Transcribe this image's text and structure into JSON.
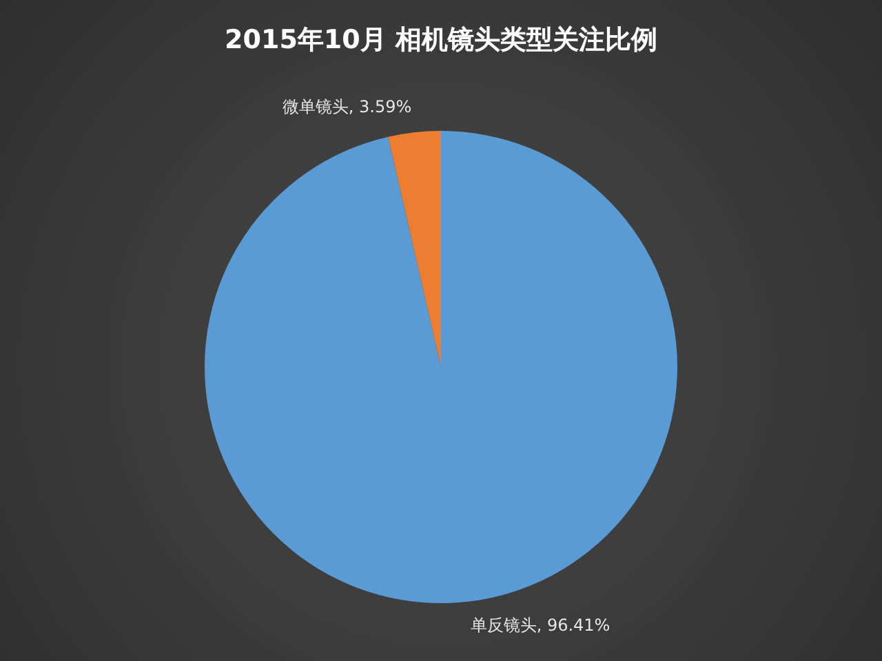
{
  "chart_data": {
    "type": "pie",
    "title": "2015年10月  相机镜头类型关注比例",
    "categories": [
      "单反镜头",
      "微单镜头"
    ],
    "values": [
      96.41,
      3.59
    ],
    "colors": [
      "#5b9bd5",
      "#ed7d31"
    ],
    "value_labels": [
      ", 96.41%",
      ", 3.59%"
    ],
    "legend": false
  }
}
